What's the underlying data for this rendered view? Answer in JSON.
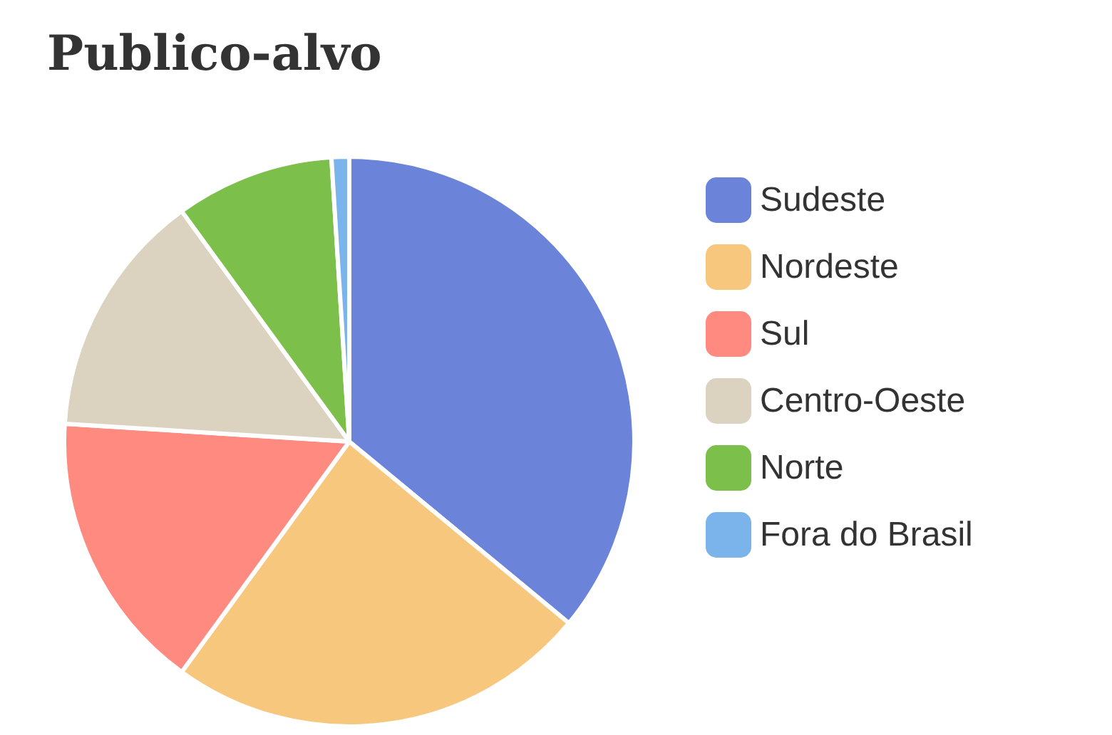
{
  "chart_data": {
    "type": "pie",
    "title": "Publico-alvo",
    "categories": [
      "Sudeste",
      "Nordeste",
      "Sul",
      "Centro-Oeste",
      "Norte",
      "Fora do Brasil"
    ],
    "values": [
      36,
      24,
      16,
      14,
      9,
      1
    ],
    "colors": [
      "#6b84d9",
      "#f7c77d",
      "#ff8a80",
      "#dcd2c0",
      "#7cc04b",
      "#7ab4ea"
    ],
    "legend": "right"
  }
}
